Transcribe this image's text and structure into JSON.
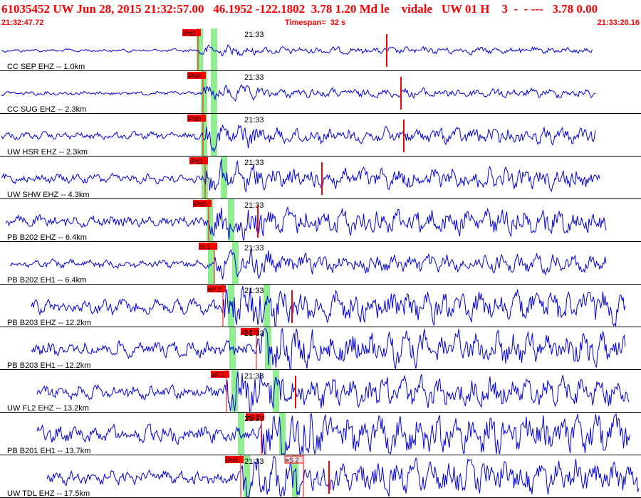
{
  "header": {
    "title": "61035452 UW Jun 28, 2015 21:32:57.00   46.1952 -122.1802  3.78 1.20 Md le    vidale   UW 01 H    3  -  - ---   3.78 0.00",
    "start_time": "21:32:47.72",
    "timespan": "Timespan=  32 s",
    "end_time": "21:33:20.16"
  },
  "minute_label": "21:33",
  "colors": {
    "trace": "#0000dd",
    "pick": "#ff0000",
    "window": "#90ee90",
    "text": "#000000"
  },
  "traces": [
    {
      "label": "CC SEP EHZ -- 1.0km",
      "pick": "iPd1",
      "s_pick": "",
      "amp": 0.15
    },
    {
      "label": "CC SUG EHZ -- 2.3km",
      "pick": "iPd0",
      "s_pick": "",
      "amp": 0.2
    },
    {
      "label": "UW HSR EHZ -- 2.3km",
      "pick": "iPd0",
      "s_pick": "",
      "amp": 0.35
    },
    {
      "label": "UW SHW EHZ -- 4.3km",
      "pick": "iPd1",
      "s_pick": "",
      "amp": 0.45
    },
    {
      "label": "PB B202 EHZ -- 6.4km",
      "pick": "iPd0",
      "s_pick": "",
      "amp": 0.55
    },
    {
      "label": "PB B202 EH1 -- 6.4km",
      "pick": "iS 1",
      "s_pick": "",
      "amp": 0.4
    },
    {
      "label": "PB B203 EHZ -- 12.2km",
      "pick": "eP 2",
      "s_pick": "",
      "amp": 0.7
    },
    {
      "label": "PB B203 EH1 -- 12.2km",
      "pick": "iS 2",
      "s_pick": "",
      "amp": 0.75
    },
    {
      "label": "UW FL2 EHZ -- 13.2km",
      "pick": "eP 2",
      "s_pick": "",
      "amp": 0.65
    },
    {
      "label": "PB B201 EH1 -- 13.7km",
      "pick": "eS 2",
      "s_pick": "",
      "amp": 0.85
    },
    {
      "label": "UW TDL EHZ -- 17.5km",
      "pick": "iPd1",
      "s_pick": "eS 2",
      "amp": 0.7
    }
  ]
}
